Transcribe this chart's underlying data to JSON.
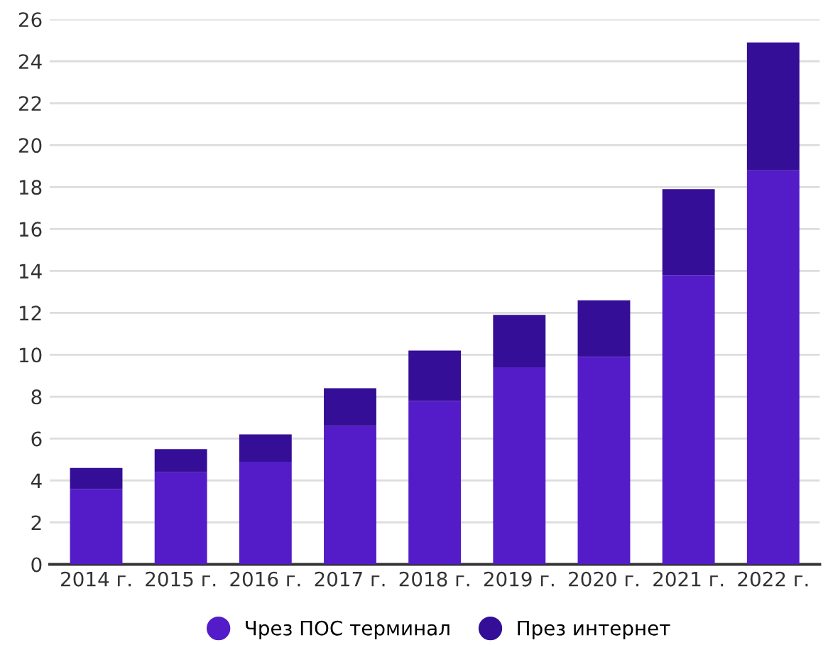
{
  "chart_data": {
    "type": "bar",
    "stacked": true,
    "categories": [
      "2014 г.",
      "2015 г.",
      "2016 г.",
      "2017 г.",
      "2018 г.",
      "2019 г.",
      "2020 г.",
      "2021 г.",
      "2022 г."
    ],
    "series": [
      {
        "name": "Чрез ПОС терминал",
        "color": "#541cc8",
        "values": [
          3.6,
          4.4,
          4.9,
          6.6,
          7.8,
          9.4,
          9.9,
          13.8,
          18.8
        ]
      },
      {
        "name": "През интернет",
        "color": "#340e96",
        "values": [
          1.0,
          1.1,
          1.3,
          1.8,
          2.4,
          2.5,
          2.7,
          4.1,
          6.1
        ]
      }
    ],
    "ylim": [
      0,
      26
    ],
    "yticks": [
      0,
      2,
      4,
      6,
      8,
      10,
      12,
      14,
      16,
      18,
      20,
      22,
      24,
      26
    ],
    "grid": "y",
    "legend": "bottom"
  }
}
